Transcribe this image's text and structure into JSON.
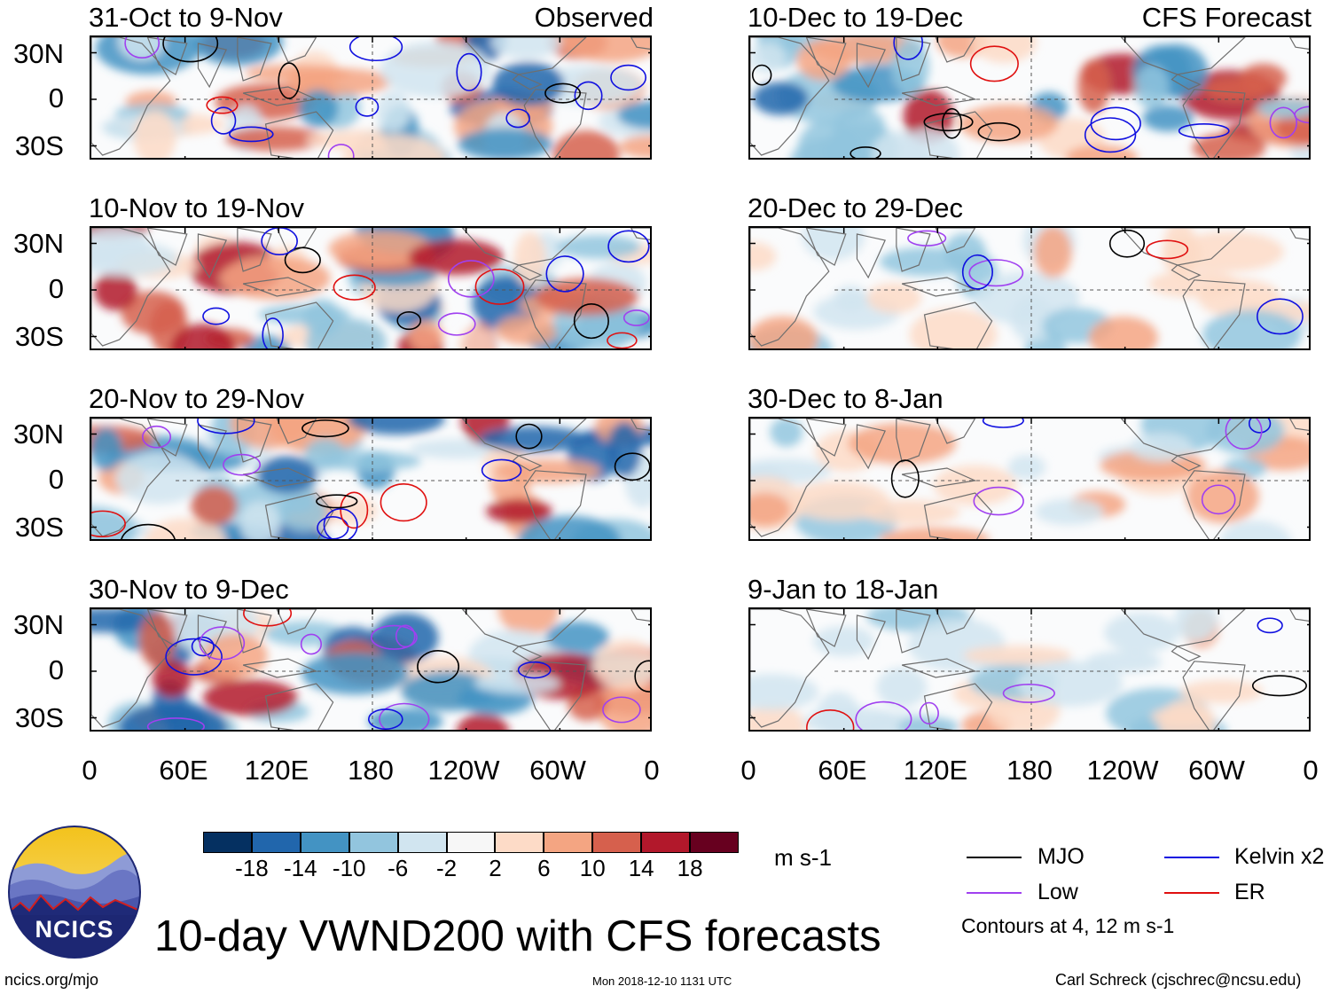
{
  "panels_left": [
    {
      "title": "31-Oct to 9-Nov",
      "tag": "Observed"
    },
    {
      "title": "10-Nov to 19-Nov",
      "tag": ""
    },
    {
      "title": "20-Nov to 29-Nov",
      "tag": ""
    },
    {
      "title": "30-Nov to 9-Dec",
      "tag": ""
    }
  ],
  "panels_right": [
    {
      "title": "10-Dec to 19-Dec",
      "tag": "CFS Forecast"
    },
    {
      "title": "20-Dec to 29-Dec",
      "tag": ""
    },
    {
      "title": "30-Dec to 8-Jan",
      "tag": ""
    },
    {
      "title": "9-Jan to 18-Jan",
      "tag": ""
    }
  ],
  "lat_labels": [
    "30N",
    "0",
    "30S"
  ],
  "lon_labels": [
    "0",
    "60E",
    "120E",
    "180",
    "120W",
    "60W",
    "0"
  ],
  "colorbar": {
    "colors": [
      "#053061",
      "#2166ac",
      "#4393c3",
      "#92c5de",
      "#d1e5f0",
      "#f7f7f7",
      "#fddbc7",
      "#f4a582",
      "#d6604d",
      "#b2182b",
      "#67001f"
    ],
    "ticks": [
      "-18",
      "-14",
      "-10",
      "-6",
      "-2",
      "2",
      "6",
      "10",
      "14",
      "18"
    ],
    "units": "m s-1"
  },
  "legend": {
    "mjo": {
      "label": "MJO",
      "color": "#000000"
    },
    "kelvin": {
      "label": "Kelvin x2",
      "color": "#1010e0"
    },
    "low": {
      "label": "Low",
      "color": "#a040f0"
    },
    "er": {
      "label": "ER",
      "color": "#e01010"
    },
    "note": "Contours at 4, 12 m s-1"
  },
  "logo_text": "NCICS",
  "main_title": "10-day VWND200 with CFS forecasts",
  "footer": {
    "left": "ncics.org/mjo",
    "center": "Mon 2018-12-10 1131 UTC",
    "right": "Carl Schreck (cjschrec@ncsu.edu)"
  }
}
